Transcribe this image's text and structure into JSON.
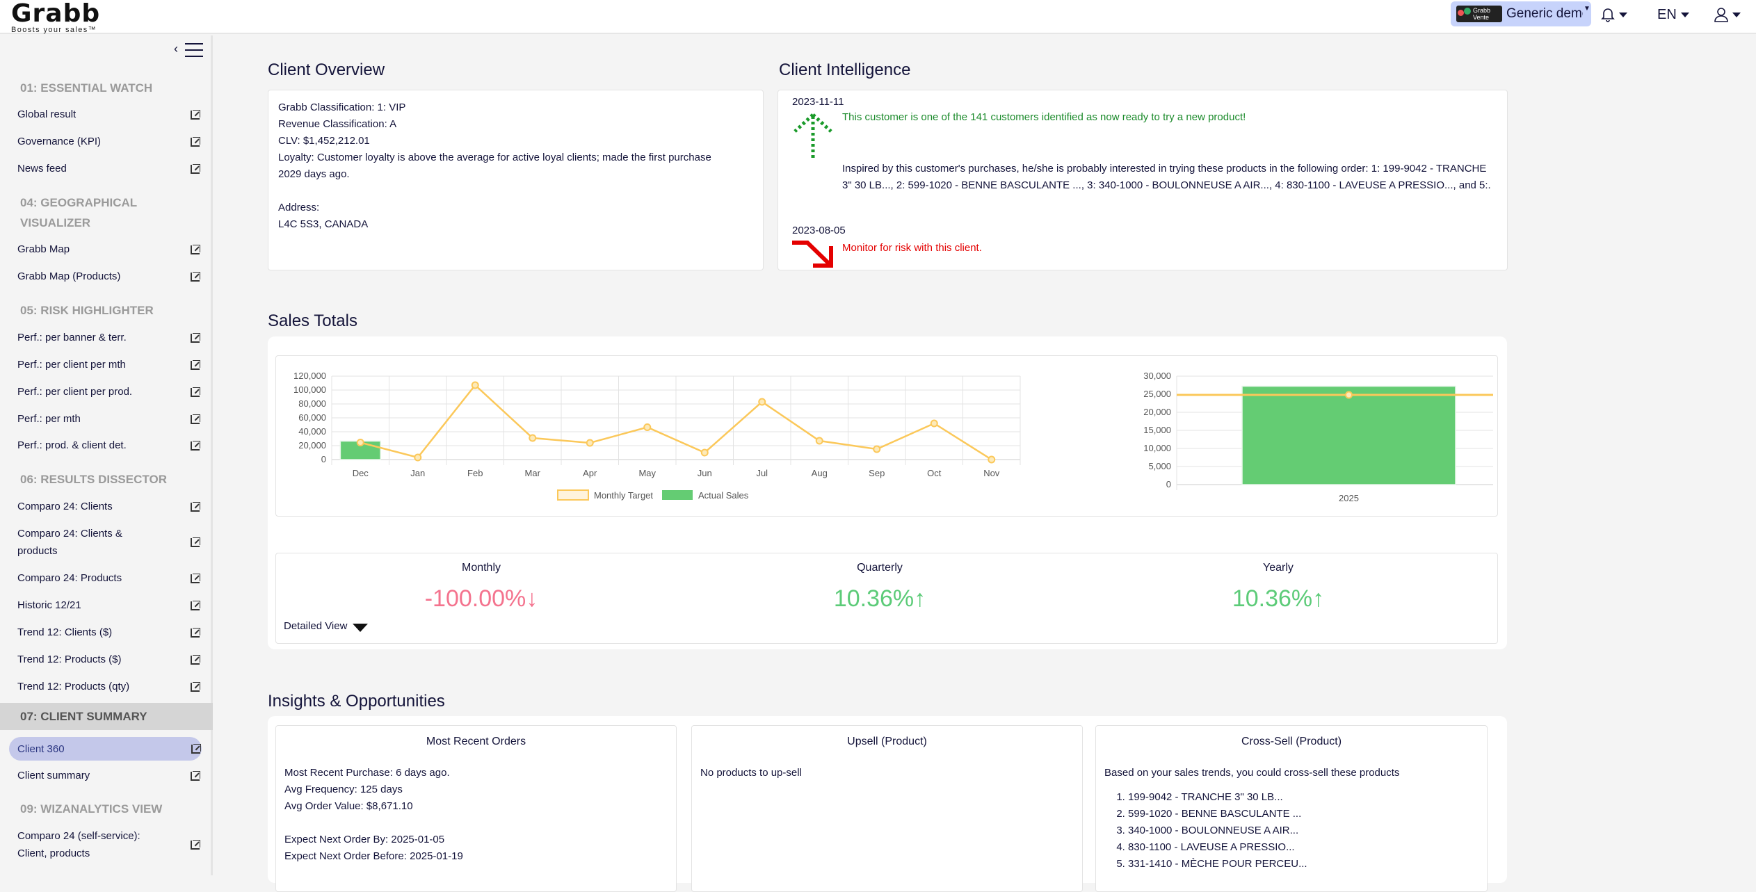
{
  "brand": {
    "name": "Grabb",
    "tagline": "Boosts your sales™"
  },
  "header": {
    "tenant_badge": "Grabb Vente",
    "tenant_name": "Generic demo",
    "language": "EN",
    "icons": {
      "notifications": "bell-icon",
      "user": "user-icon"
    }
  },
  "sidebar": {
    "sections": [
      {
        "title": "01: ESSENTIAL WATCH",
        "items": [
          {
            "label": "Global result"
          },
          {
            "label": "Governance (KPI)"
          },
          {
            "label": "News feed"
          }
        ]
      },
      {
        "title": "04: GEOGRAPHICAL VISUALIZER",
        "items": [
          {
            "label": "Grabb Map"
          },
          {
            "label": "Grabb Map (Products)"
          }
        ]
      },
      {
        "title": "05: RISK HIGHLIGHTER",
        "items": [
          {
            "label": "Perf.: per banner & terr."
          },
          {
            "label": "Perf.: per client per mth"
          },
          {
            "label": "Perf.: per client per prod."
          },
          {
            "label": "Perf.: per mth"
          },
          {
            "label": "Perf.: prod. & client det."
          }
        ]
      },
      {
        "title": "06: RESULTS DISSECTOR",
        "items": [
          {
            "label": "Comparo 24: Clients"
          },
          {
            "label": "Comparo 24: Clients & products"
          },
          {
            "label": "Comparo 24: Products"
          },
          {
            "label": "Historic 12/21"
          },
          {
            "label": "Trend 12: Clients ($)"
          },
          {
            "label": "Trend 12: Products ($)"
          },
          {
            "label": "Trend 12: Products (qty)"
          }
        ]
      },
      {
        "title": "07: CLIENT SUMMARY",
        "items": [
          {
            "label": "Client 360",
            "selected": true
          },
          {
            "label": "Client summary"
          }
        ]
      },
      {
        "title": "09: WIZANALYTICS VIEW",
        "items": [
          {
            "label": "Comparo 24 (self-service): Client, products"
          }
        ]
      }
    ]
  },
  "overview": {
    "title": "Client Overview",
    "lines": [
      "Grabb Classification: 1: VIP",
      "Revenue Classification: A",
      "CLV: $1,452,212.01",
      "Loyalty: Customer loyalty is above the average for active loyal clients; made the first purchase 2029 days ago."
    ],
    "address_label": "Address:",
    "address": "L4C 5S3, CANADA"
  },
  "intelligence": {
    "title": "Client Intelligence",
    "entries": [
      {
        "date": "2023-11-11",
        "message": "This customer is one of the 141 customers identified as now ready to try a new product!",
        "detail": "Inspired by this customer's purchases, he/she is probably interested in trying these products in the following order: 1: 199-9042 - TRANCHE 3\" 30 LB..., 2: 599-1020 - BENNE BASCULANTE ..., 3: 340-1000 - BOULONNEUSE A AIR..., 4: 830-1100 - LAVEUSE A PRESSIO..., and 5:.",
        "color": "#1a8a2a"
      },
      {
        "date": "2023-08-05",
        "message": "Monitor for risk with this client.",
        "color": "#e40000"
      }
    ]
  },
  "sales": {
    "title": "Sales Totals",
    "kpis": [
      {
        "label": "Monthly",
        "value": "-100.00%",
        "dir": "↓",
        "color": "#f4738e"
      },
      {
        "label": "Quarterly",
        "value": "10.36%",
        "dir": "↑",
        "color": "#5ccb78"
      },
      {
        "label": "Yearly",
        "value": "10.36%",
        "dir": "↑",
        "color": "#5ccb78"
      }
    ],
    "detailed_view": "Detailed View"
  },
  "chart_data": [
    {
      "type": "bar",
      "title": "",
      "categories": [
        "Dec",
        "Jan",
        "Feb",
        "Mar",
        "Apr",
        "May",
        "Jun",
        "Jul",
        "Aug",
        "Sep",
        "Oct",
        "Nov"
      ],
      "series": [
        {
          "name": "Monthly Target",
          "kind": "line",
          "color": "#fbc85a",
          "values": [
            24500,
            3000,
            107000,
            31000,
            24000,
            46500,
            10000,
            83000,
            27000,
            15000,
            52000,
            0
          ]
        },
        {
          "name": "Actual Sales",
          "kind": "bar",
          "color": "#64cc73",
          "values": [
            26500,
            0,
            0,
            0,
            0,
            0,
            0,
            0,
            0,
            0,
            0,
            0
          ]
        }
      ],
      "yticks": [
        "0",
        "20,000",
        "40,000",
        "60,000",
        "80,000",
        "100,000",
        "120,000"
      ],
      "ylim": [
        0,
        120000
      ],
      "legend": "bottom",
      "grid": true
    },
    {
      "type": "bar",
      "title": "",
      "categories": [
        "2025"
      ],
      "series": [
        {
          "name": "Actual Sales",
          "kind": "bar",
          "color": "#64cc73",
          "values": [
            27200
          ]
        },
        {
          "name": "Monthly Target",
          "kind": "line",
          "color": "#fbc85a",
          "values": [
            24800
          ]
        }
      ],
      "yticks": [
        "0",
        "5,000",
        "10,000",
        "15,000",
        "20,000",
        "25,000",
        "30,000"
      ],
      "ylim": [
        0,
        30000
      ],
      "grid": true
    }
  ],
  "insights": {
    "title": "Insights & Opportunities",
    "recent": {
      "title": "Most Recent Orders",
      "lines": [
        "Most Recent Purchase: 6 days ago.",
        "Avg Frequency: 125 days",
        "Avg Order Value: $8,671.10"
      ],
      "lines2": [
        "Expect Next Order By: 2025-01-05",
        "Expect Next Order Before: 2025-01-19"
      ]
    },
    "upsell": {
      "title": "Upsell (Product)",
      "text": "No products to up-sell"
    },
    "crosssell": {
      "title": "Cross-Sell (Product)",
      "intro": "Based on your sales trends, you could cross-sell these products",
      "items": [
        "199-9042 - TRANCHE 3\" 30 LB...",
        "599-1020 - BENNE BASCULANTE ...",
        "340-1000 - BOULONNEUSE A AIR...",
        "830-1100 - LAVEUSE A PRESSIO...",
        "331-1410 - MÈCHE POUR PERCEU..."
      ]
    }
  }
}
